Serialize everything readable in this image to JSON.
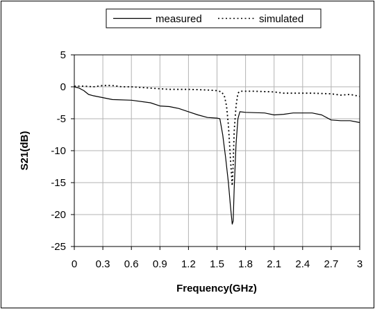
{
  "chart_data": {
    "type": "line",
    "xlabel": "Frequency(GHz)",
    "ylabel": "S21(dB)",
    "xlim": [
      0,
      3
    ],
    "ylim": [
      -25,
      5
    ],
    "x_ticks": [
      "0",
      "0.3",
      "0.6",
      "0.9",
      "1.2",
      "1.5",
      "1.8",
      "2.1",
      "2.4",
      "2.7",
      "3"
    ],
    "y_ticks": [
      "5",
      "0",
      "-5",
      "-10",
      "-15",
      "-20",
      "-25"
    ],
    "grid": true,
    "legend_position": "top-center",
    "series": [
      {
        "name": "measured",
        "style": "solid",
        "color": "#000000",
        "points": [
          [
            0,
            0
          ],
          [
            0.05,
            -0.2
          ],
          [
            0.1,
            -0.6
          ],
          [
            0.15,
            -1.2
          ],
          [
            0.2,
            -1.4
          ],
          [
            0.3,
            -1.7
          ],
          [
            0.4,
            -2.0
          ],
          [
            0.6,
            -2.1
          ],
          [
            0.8,
            -2.5
          ],
          [
            0.9,
            -3.0
          ],
          [
            1.0,
            -3.1
          ],
          [
            1.1,
            -3.4
          ],
          [
            1.2,
            -3.9
          ],
          [
            1.3,
            -4.4
          ],
          [
            1.4,
            -4.8
          ],
          [
            1.5,
            -4.9
          ],
          [
            1.53,
            -5.0
          ],
          [
            1.56,
            -7.5
          ],
          [
            1.59,
            -11.0
          ],
          [
            1.62,
            -15.0
          ],
          [
            1.64,
            -18.5
          ],
          [
            1.66,
            -21.5
          ],
          [
            1.67,
            -21.0
          ],
          [
            1.68,
            -16.0
          ],
          [
            1.7,
            -9.0
          ],
          [
            1.72,
            -5.0
          ],
          [
            1.74,
            -3.9
          ],
          [
            1.8,
            -4.0
          ],
          [
            2.0,
            -4.1
          ],
          [
            2.1,
            -4.4
          ],
          [
            2.2,
            -4.3
          ],
          [
            2.3,
            -4.1
          ],
          [
            2.5,
            -4.1
          ],
          [
            2.6,
            -4.4
          ],
          [
            2.7,
            -5.2
          ],
          [
            2.8,
            -5.3
          ],
          [
            2.9,
            -5.3
          ],
          [
            3.0,
            -5.6
          ]
        ]
      },
      {
        "name": "simulated",
        "style": "dotted",
        "color": "#000000",
        "points": [
          [
            0,
            0.1
          ],
          [
            0.1,
            0.1
          ],
          [
            0.2,
            0.0
          ],
          [
            0.3,
            0.2
          ],
          [
            0.4,
            0.2
          ],
          [
            0.5,
            0.0
          ],
          [
            0.6,
            0.0
          ],
          [
            0.7,
            -0.1
          ],
          [
            0.9,
            -0.3
          ],
          [
            1.0,
            -0.4
          ],
          [
            1.2,
            -0.4
          ],
          [
            1.4,
            -0.5
          ],
          [
            1.5,
            -0.6
          ],
          [
            1.55,
            -0.8
          ],
          [
            1.58,
            -1.6
          ],
          [
            1.6,
            -3.0
          ],
          [
            1.62,
            -6.0
          ],
          [
            1.64,
            -11.0
          ],
          [
            1.66,
            -15.5
          ],
          [
            1.67,
            -12.0
          ],
          [
            1.68,
            -7.0
          ],
          [
            1.7,
            -3.0
          ],
          [
            1.72,
            -1.0
          ],
          [
            1.74,
            -0.7
          ],
          [
            1.9,
            -0.7
          ],
          [
            2.1,
            -0.8
          ],
          [
            2.2,
            -1.0
          ],
          [
            2.5,
            -1.0
          ],
          [
            2.7,
            -1.1
          ],
          [
            2.8,
            -1.3
          ],
          [
            2.9,
            -1.2
          ],
          [
            3.0,
            -1.5
          ]
        ]
      }
    ]
  }
}
